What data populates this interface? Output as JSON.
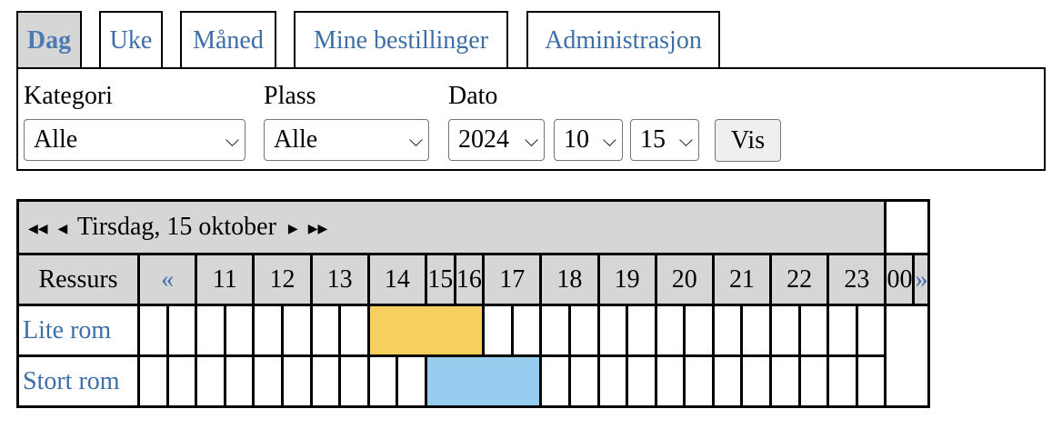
{
  "tabs": [
    {
      "label": "Dag",
      "active": true
    },
    {
      "label": "Uke"
    },
    {
      "label": "Måned"
    },
    {
      "label": "Mine bestillinger"
    },
    {
      "label": "Administrasjon"
    }
  ],
  "filters": {
    "kategori_label": "Kategori",
    "kategori_value": "Alle",
    "plass_label": "Plass",
    "plass_value": "Alle",
    "dato_label": "Dato",
    "year": "2024",
    "month": "10",
    "day": "15",
    "show_button": "Vis"
  },
  "calendar": {
    "date_title": "Tirsdag, 15 oktober",
    "resource_header": "Ressurs",
    "prev": "«",
    "next": "»",
    "hours": [
      "11",
      "12",
      "13",
      "14",
      "15",
      "16",
      "17",
      "18",
      "19",
      "20",
      "21",
      "22",
      "23",
      "00"
    ],
    "resources": [
      {
        "name": "Lite rom",
        "booking_color": "#f6cf5e"
      },
      {
        "name": "Stort rom",
        "booking_color": "#96cdee"
      }
    ]
  }
}
